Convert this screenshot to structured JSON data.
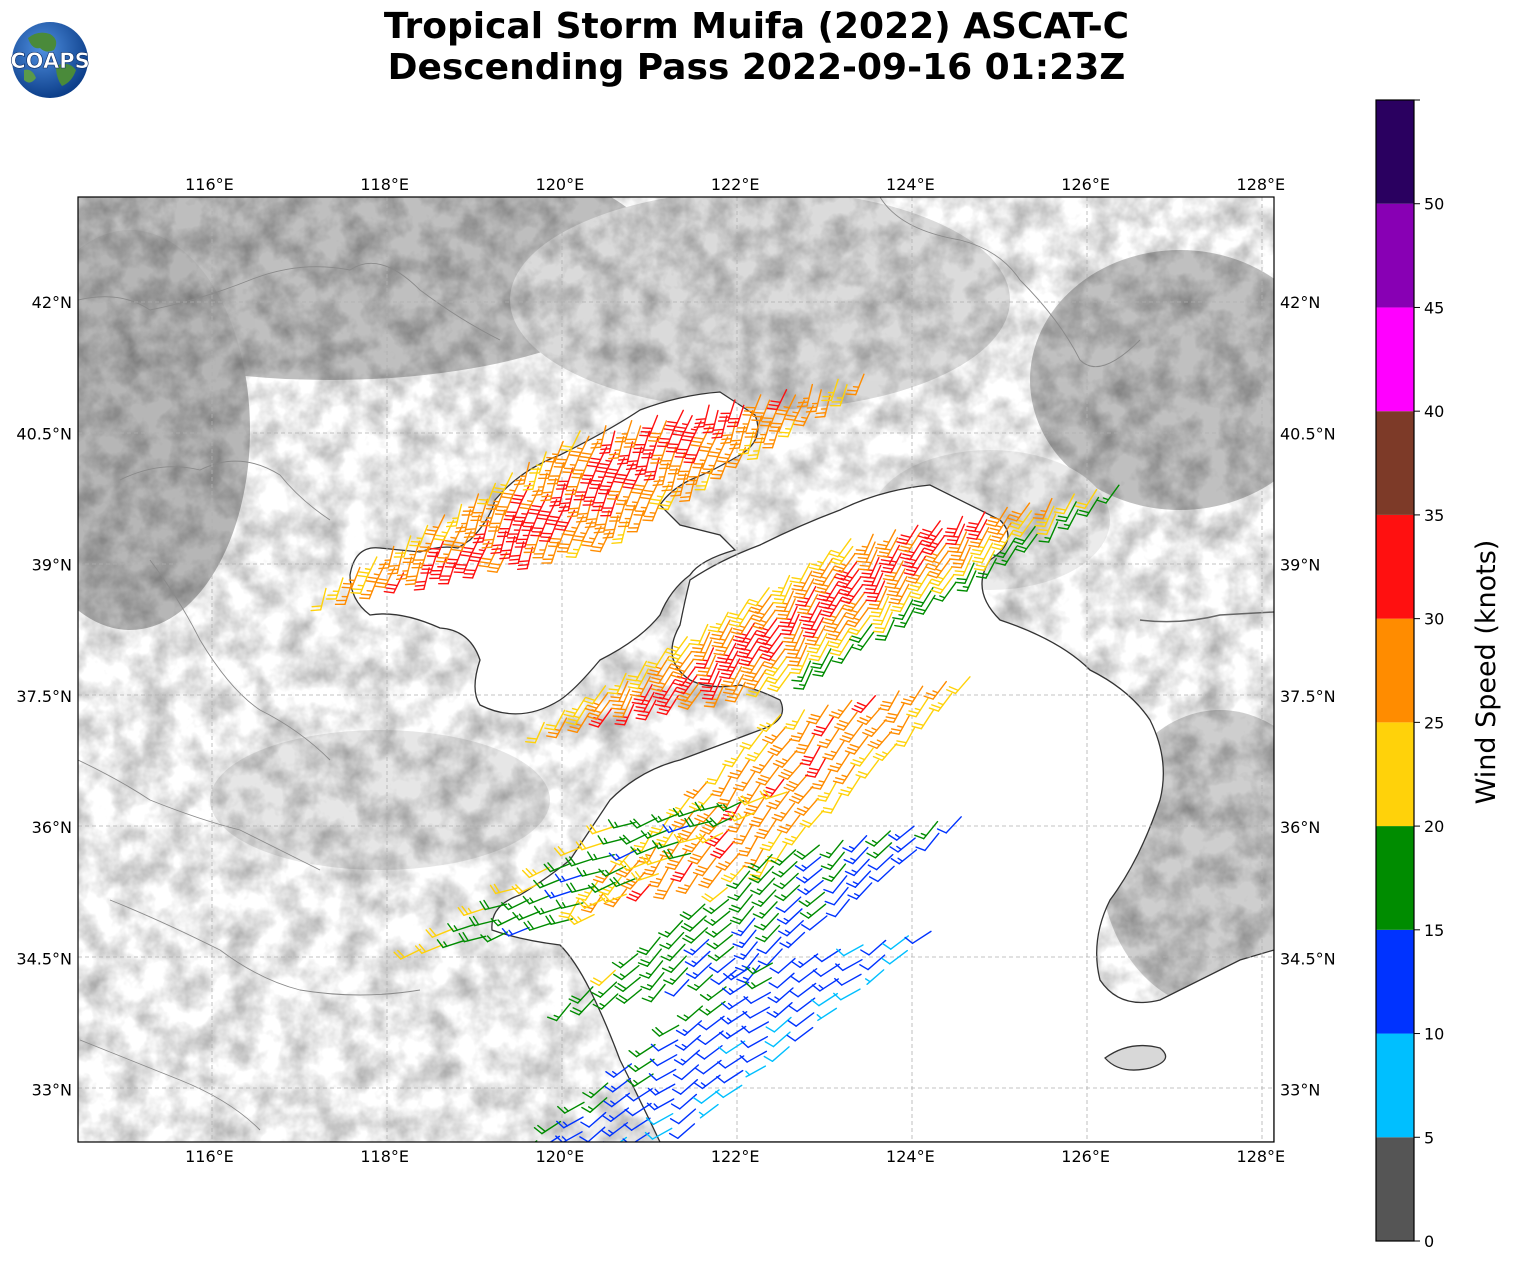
{
  "title": {
    "line1": "Tropical Storm Muifa (2022) ASCAT-C",
    "line2": "Descending Pass 2022-09-16 01:23Z"
  },
  "logo": {
    "text": "COAPS",
    "ocean_color": "#1a5fb4",
    "land_color": "#4a8a3a"
  },
  "map": {
    "lon_range": [
      114.5,
      128.15
    ],
    "lat_range": [
      32.4,
      43.2
    ],
    "lon_ticks": [
      "116°E",
      "118°E",
      "120°E",
      "122°E",
      "124°E",
      "126°E",
      "128°E"
    ],
    "lat_ticks": [
      "42°N",
      "40.5°N",
      "39°N",
      "37.5°N",
      "36°N",
      "34.5°N",
      "33°N"
    ],
    "gridlines": true,
    "background": "grayscale terrain shading",
    "coastline_color": "#333333",
    "border_color": "#888888"
  },
  "colorbar": {
    "label": "Wind Speed (knots)",
    "tick_labels": [
      "0",
      "5",
      "10",
      "15",
      "20",
      "25",
      "30",
      "35",
      "40",
      "45",
      "50"
    ],
    "bins": [
      {
        "min": 0,
        "max": 5,
        "color": "#555555"
      },
      {
        "min": 5,
        "max": 10,
        "color": "#00bfff"
      },
      {
        "min": 10,
        "max": 15,
        "color": "#0033ff"
      },
      {
        "min": 15,
        "max": 20,
        "color": "#008c00"
      },
      {
        "min": 20,
        "max": 25,
        "color": "#ffd20a"
      },
      {
        "min": 25,
        "max": 30,
        "color": "#ff8c00"
      },
      {
        "min": 30,
        "max": 35,
        "color": "#ff1010"
      },
      {
        "min": 35,
        "max": 40,
        "color": "#7d3a28"
      },
      {
        "min": 40,
        "max": 45,
        "color": "#ff00ff"
      },
      {
        "min": 45,
        "max": 50,
        "color": "#8800b4"
      },
      {
        "min": 50,
        "max": 55,
        "color": "#2a0060"
      }
    ]
  },
  "wind_swaths": [
    {
      "name": "bohai",
      "lon0": 118.95,
      "lat0": 39.05,
      "lon1": 121.85,
      "lat1": 40.85,
      "width_lon": 3.6,
      "rows": 16,
      "cols": 12,
      "speeds": [
        24,
        26,
        28,
        29,
        31,
        32,
        31,
        30,
        28,
        27,
        26,
        25
      ],
      "dir_deg": 200
    },
    {
      "name": "yellow-sea-north",
      "lon0": 121.35,
      "lat0": 37.5,
      "lon1": 124.85,
      "lat1": 39.6,
      "width_lon": 3.4,
      "rows": 16,
      "cols": 13,
      "speeds": [
        22,
        25,
        27,
        29,
        31,
        32,
        31,
        29,
        27,
        25,
        22,
        19,
        17
      ],
      "dir_deg": 210
    },
    {
      "name": "yellow-sea-central",
      "lon0": 121.3,
      "lat0": 35.4,
      "lon1": 123.6,
      "lat1": 37.5,
      "width_lon": 2.4,
      "rows": 12,
      "cols": 9,
      "speeds": [
        23,
        25,
        27,
        28,
        29,
        28,
        27,
        25,
        22
      ],
      "dir_deg": 215
    },
    {
      "name": "yellow-sea-south",
      "lon0": 121.2,
      "lat0": 34.2,
      "lon1": 123.5,
      "lat1": 35.9,
      "width_lon": 2.4,
      "rows": 10,
      "cols": 9,
      "speeds": [
        18,
        17,
        17,
        16,
        15,
        14,
        14,
        13,
        12
      ],
      "dir_deg": 225
    },
    {
      "name": "jiangsu-coast",
      "lon0": 119.4,
      "lat0": 34.8,
      "lon1": 121.6,
      "lat1": 36.2,
      "width_lon": 2.2,
      "rows": 7,
      "cols": 9,
      "speeds": [
        22,
        19,
        17,
        16,
        15,
        16,
        18,
        20,
        21
      ],
      "dir_deg": 250
    },
    {
      "name": "southern-tail",
      "lon0": 120.5,
      "lat0": 32.4,
      "lon1": 123.2,
      "lat1": 34.6,
      "width_lon": 2.3,
      "rows": 11,
      "cols": 9,
      "speeds": [
        16,
        14,
        13,
        12,
        12,
        11,
        11,
        10,
        8
      ],
      "dir_deg": 235
    }
  ]
}
